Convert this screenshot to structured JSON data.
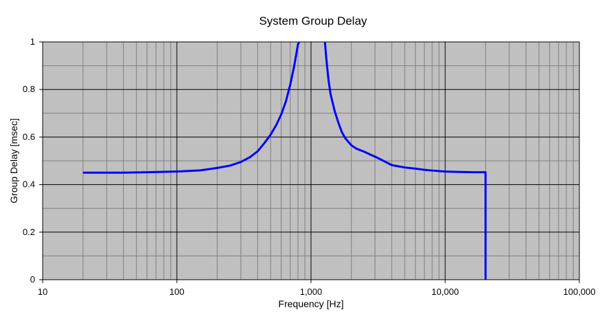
{
  "chart_data": {
    "type": "line",
    "title": "System Group Delay",
    "xlabel": "Frequency [Hz]",
    "ylabel": "Group Delay [msec]",
    "x_scale": "log",
    "xlim": [
      10,
      100000
    ],
    "ylim": [
      0,
      1
    ],
    "grid": true,
    "legend": "none",
    "x_ticks": [
      10,
      100,
      1000,
      10000,
      100000
    ],
    "x_tick_labels": [
      "10",
      "100",
      "1,000",
      "10,000",
      "100,000"
    ],
    "y_ticks": [
      0,
      0.2,
      0.4,
      0.6,
      0.8,
      1
    ],
    "y_tick_labels": [
      "0",
      "0.2",
      "0.4",
      "0.6",
      "0.8",
      "1"
    ],
    "colors": {
      "plot_background": "#c0c0c0",
      "series": "#0000ff"
    },
    "series": [
      {
        "segments": [
          [
            [
              20,
              0.45
            ],
            [
              40,
              0.45
            ],
            [
              60,
              0.452
            ],
            [
              100,
              0.455
            ],
            [
              150,
              0.46
            ],
            [
              200,
              0.47
            ],
            [
              250,
              0.48
            ],
            [
              300,
              0.495
            ],
            [
              350,
              0.515
            ],
            [
              400,
              0.54
            ],
            [
              450,
              0.575
            ],
            [
              500,
              0.61
            ],
            [
              550,
              0.65
            ],
            [
              600,
              0.695
            ],
            [
              650,
              0.75
            ],
            [
              700,
              0.82
            ],
            [
              750,
              0.9
            ],
            [
              800,
              0.99
            ],
            [
              815,
              1.0
            ]
          ],
          [
            [
              1270,
              1.0
            ],
            [
              1300,
              0.93
            ],
            [
              1350,
              0.84
            ],
            [
              1400,
              0.78
            ],
            [
              1500,
              0.71
            ],
            [
              1600,
              0.66
            ],
            [
              1700,
              0.62
            ],
            [
              1800,
              0.595
            ],
            [
              2000,
              0.565
            ],
            [
              2200,
              0.55
            ],
            [
              2500,
              0.538
            ],
            [
              2800,
              0.525
            ],
            [
              3200,
              0.51
            ],
            [
              3600,
              0.495
            ],
            [
              4000,
              0.482
            ],
            [
              5000,
              0.472
            ],
            [
              6000,
              0.467
            ],
            [
              7000,
              0.462
            ],
            [
              8000,
              0.459
            ],
            [
              10000,
              0.455
            ],
            [
              13000,
              0.453
            ],
            [
              16000,
              0.452
            ],
            [
              20000,
              0.452
            ],
            [
              20000,
              0.0
            ]
          ]
        ]
      }
    ]
  }
}
